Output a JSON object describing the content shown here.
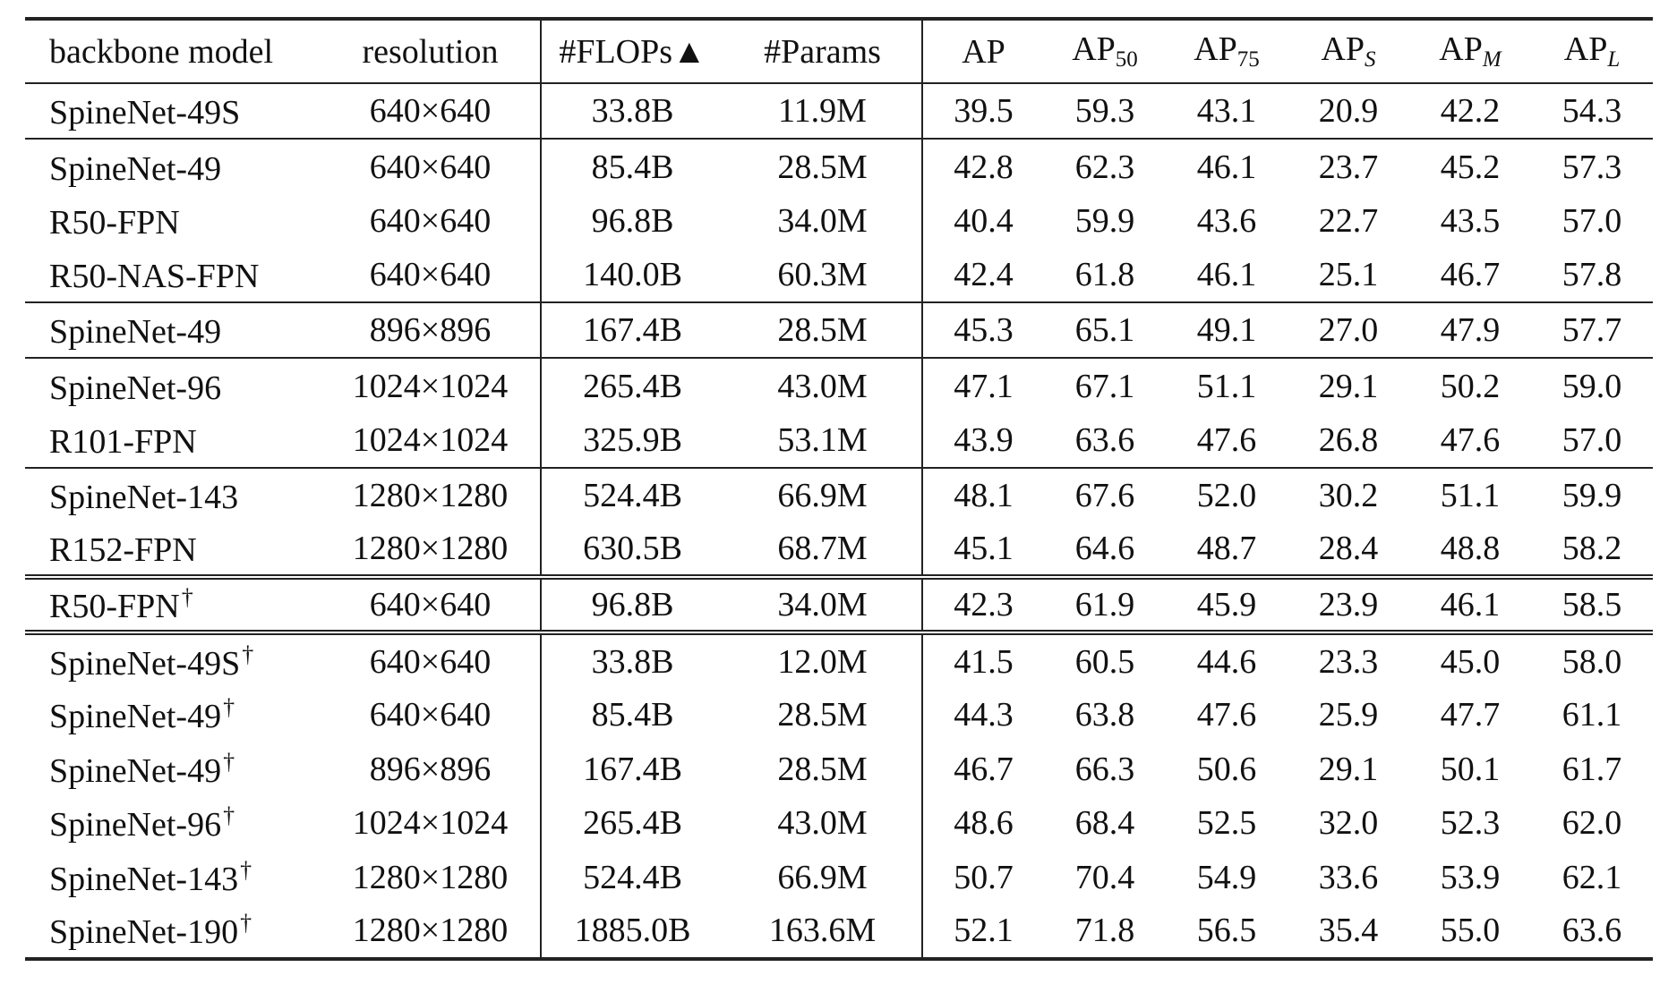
{
  "headers": {
    "model": "backbone model",
    "resolution": "resolution",
    "flops": "#FLOPs▲",
    "params": "#Params",
    "ap": "AP",
    "ap50": {
      "base": "AP",
      "sub": "50"
    },
    "ap75": {
      "base": "AP",
      "sub": "75"
    },
    "aps": {
      "base": "AP",
      "sub": "S"
    },
    "apm": {
      "base": "AP",
      "sub": "M"
    },
    "apl": {
      "base": "AP",
      "sub": "L"
    }
  },
  "rows": [
    {
      "model": "SpineNet-49S",
      "dagger": "",
      "resolution": "640×640",
      "flops": "33.8B",
      "params": "11.9M",
      "ap": "39.5",
      "ap50": "59.3",
      "ap75": "43.1",
      "aps": "20.9",
      "apm": "42.2",
      "apl": "54.3"
    },
    {
      "model": "SpineNet-49",
      "dagger": "",
      "resolution": "640×640",
      "flops": "85.4B",
      "params": "28.5M",
      "ap": "42.8",
      "ap50": "62.3",
      "ap75": "46.1",
      "aps": "23.7",
      "apm": "45.2",
      "apl": "57.3"
    },
    {
      "model": "R50-FPN",
      "dagger": "",
      "resolution": "640×640",
      "flops": "96.8B",
      "params": "34.0M",
      "ap": "40.4",
      "ap50": "59.9",
      "ap75": "43.6",
      "aps": "22.7",
      "apm": "43.5",
      "apl": "57.0"
    },
    {
      "model": "R50-NAS-FPN",
      "dagger": "",
      "resolution": "640×640",
      "flops": "140.0B",
      "params": "60.3M",
      "ap": "42.4",
      "ap50": "61.8",
      "ap75": "46.1",
      "aps": "25.1",
      "apm": "46.7",
      "apl": "57.8"
    },
    {
      "model": "SpineNet-49",
      "dagger": "",
      "resolution": "896×896",
      "flops": "167.4B",
      "params": "28.5M",
      "ap": "45.3",
      "ap50": "65.1",
      "ap75": "49.1",
      "aps": "27.0",
      "apm": "47.9",
      "apl": "57.7"
    },
    {
      "model": "SpineNet-96",
      "dagger": "",
      "resolution": "1024×1024",
      "flops": "265.4B",
      "params": "43.0M",
      "ap": "47.1",
      "ap50": "67.1",
      "ap75": "51.1",
      "aps": "29.1",
      "apm": "50.2",
      "apl": "59.0"
    },
    {
      "model": "R101-FPN",
      "dagger": "",
      "resolution": "1024×1024",
      "flops": "325.9B",
      "params": "53.1M",
      "ap": "43.9",
      "ap50": "63.6",
      "ap75": "47.6",
      "aps": "26.8",
      "apm": "47.6",
      "apl": "57.0"
    },
    {
      "model": "SpineNet-143",
      "dagger": "",
      "resolution": "1280×1280",
      "flops": "524.4B",
      "params": "66.9M",
      "ap": "48.1",
      "ap50": "67.6",
      "ap75": "52.0",
      "aps": "30.2",
      "apm": "51.1",
      "apl": "59.9"
    },
    {
      "model": "R152-FPN",
      "dagger": "",
      "resolution": "1280×1280",
      "flops": "630.5B",
      "params": "68.7M",
      "ap": "45.1",
      "ap50": "64.6",
      "ap75": "48.7",
      "aps": "28.4",
      "apm": "48.8",
      "apl": "58.2"
    },
    {
      "model": "R50-FPN",
      "dagger": "†",
      "resolution": "640×640",
      "flops": "96.8B",
      "params": "34.0M",
      "ap": "42.3",
      "ap50": "61.9",
      "ap75": "45.9",
      "aps": "23.9",
      "apm": "46.1",
      "apl": "58.5"
    },
    {
      "model": "SpineNet-49S",
      "dagger": "†",
      "resolution": "640×640",
      "flops": "33.8B",
      "params": "12.0M",
      "ap": "41.5",
      "ap50": "60.5",
      "ap75": "44.6",
      "aps": "23.3",
      "apm": "45.0",
      "apl": "58.0"
    },
    {
      "model": "SpineNet-49",
      "dagger": "†",
      "resolution": "640×640",
      "flops": "85.4B",
      "params": "28.5M",
      "ap": "44.3",
      "ap50": "63.8",
      "ap75": "47.6",
      "aps": "25.9",
      "apm": "47.7",
      "apl": "61.1"
    },
    {
      "model": "SpineNet-49",
      "dagger": "†",
      "resolution": "896×896",
      "flops": "167.4B",
      "params": "28.5M",
      "ap": "46.7",
      "ap50": "66.3",
      "ap75": "50.6",
      "aps": "29.1",
      "apm": "50.1",
      "apl": "61.7"
    },
    {
      "model": "SpineNet-96",
      "dagger": "†",
      "resolution": "1024×1024",
      "flops": "265.4B",
      "params": "43.0M",
      "ap": "48.6",
      "ap50": "68.4",
      "ap75": "52.5",
      "aps": "32.0",
      "apm": "52.3",
      "apl": "62.0"
    },
    {
      "model": "SpineNet-143",
      "dagger": "†",
      "resolution": "1280×1280",
      "flops": "524.4B",
      "params": "66.9M",
      "ap": "50.7",
      "ap50": "70.4",
      "ap75": "54.9",
      "aps": "33.6",
      "apm": "53.9",
      "apl": "62.1"
    },
    {
      "model": "SpineNet-190",
      "dagger": "†",
      "resolution": "1280×1280",
      "flops": "1885.0B",
      "params": "163.6M",
      "ap": "52.1",
      "ap50": "71.8",
      "ap75": "56.5",
      "aps": "35.4",
      "apm": "55.0",
      "apl": "63.6"
    }
  ]
}
